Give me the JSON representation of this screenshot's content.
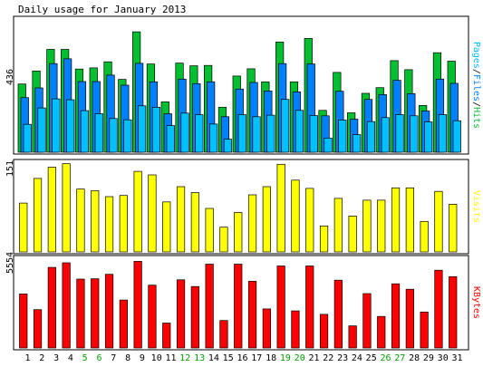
{
  "title": "Daily usage for January 2013",
  "colors": {
    "background": "#FFFFFF",
    "panel_background": "#FFFFFF",
    "border": "#000000",
    "hits": "#00C030",
    "files": "#0080FF",
    "pages": "#00C0FF",
    "visits": "#FFFF00",
    "kbytes": "#FF0000",
    "weekday_label": "#000000",
    "weekend_label": "#00A000"
  },
  "chart_data": [
    {
      "type": "bar",
      "panel": "pages-files-hits",
      "y_max_label": "436",
      "ylim": [
        0,
        436
      ],
      "legend": [
        {
          "name": "Pages",
          "color": "#00C0FF"
        },
        {
          "name": "Files",
          "color": "#0080FF"
        },
        {
          "name": "Hits",
          "color": "#00C030"
        }
      ],
      "separators": [
        "/",
        "/"
      ],
      "categories": [
        "1",
        "2",
        "3",
        "4",
        "5",
        "6",
        "7",
        "8",
        "9",
        "10",
        "11",
        "12",
        "13",
        "14",
        "15",
        "16",
        "17",
        "18",
        "19",
        "20",
        "21",
        "22",
        "23",
        "24",
        "25",
        "26",
        "27",
        "28",
        "29",
        "30",
        "31"
      ],
      "series": [
        {
          "name": "Hits",
          "values": [
            225,
            268,
            339,
            339,
            274,
            278,
            298,
            240,
            397,
            291,
            166,
            294,
            285,
            286,
            148,
            251,
            275,
            232,
            363,
            232,
            375,
            138,
            263,
            130,
            194,
            213,
            302,
            272,
            154,
            328,
            300
          ]
        },
        {
          "name": "Files",
          "values": [
            180,
            212,
            292,
            308,
            233,
            233,
            254,
            221,
            293,
            232,
            127,
            241,
            226,
            232,
            117,
            208,
            230,
            202,
            292,
            199,
            291,
            120,
            201,
            109,
            174,
            190,
            237,
            193,
            136,
            241,
            227
          ]
        },
        {
          "name": "Pages",
          "values": [
            92,
            146,
            176,
            173,
            137,
            127,
            111,
            107,
            153,
            148,
            88,
            129,
            124,
            93,
            43,
            124,
            117,
            122,
            174,
            138,
            121,
            47,
            106,
            58,
            101,
            114,
            124,
            120,
            100,
            124,
            104
          ]
        }
      ]
    },
    {
      "type": "bar",
      "panel": "visits",
      "y_max_label": "151",
      "ylim": [
        0,
        151
      ],
      "legend": [
        {
          "name": "Visits",
          "color": "#FFFF00"
        }
      ],
      "categories": [
        "1",
        "2",
        "3",
        "4",
        "5",
        "6",
        "7",
        "8",
        "9",
        "10",
        "11",
        "12",
        "13",
        "14",
        "15",
        "16",
        "17",
        "18",
        "19",
        "20",
        "21",
        "22",
        "23",
        "24",
        "25",
        "26",
        "27",
        "28",
        "29",
        "30",
        "31"
      ],
      "series": [
        {
          "name": "Visits",
          "values": [
            83,
            125,
            144,
            150,
            107,
            104,
            94,
            96,
            137,
            131,
            85,
            111,
            101,
            74,
            42,
            67,
            97,
            111,
            149,
            122,
            108,
            44,
            91,
            61,
            88,
            88,
            109,
            109,
            52,
            103,
            81
          ]
        }
      ]
    },
    {
      "type": "bar",
      "panel": "kbytes",
      "y_max_label": "5554",
      "ylim": [
        0,
        5554
      ],
      "legend": [
        {
          "name": "KBytes",
          "color": "#FF0000"
        }
      ],
      "categories": [
        "1",
        "2",
        "3",
        "4",
        "5",
        "6",
        "7",
        "8",
        "9",
        "10",
        "11",
        "12",
        "13",
        "14",
        "15",
        "16",
        "17",
        "18",
        "19",
        "20",
        "21",
        "22",
        "23",
        "24",
        "25",
        "26",
        "27",
        "28",
        "29",
        "30",
        "31"
      ],
      "series": [
        {
          "name": "KBytes",
          "values": [
            3380,
            2400,
            5040,
            5330,
            4310,
            4330,
            4610,
            3000,
            5420,
            3930,
            1560,
            4260,
            3840,
            5240,
            1720,
            5240,
            4170,
            2440,
            5130,
            2320,
            5130,
            2100,
            4240,
            1380,
            3400,
            1970,
            4010,
            3670,
            2250,
            4860,
            4460
          ]
        }
      ]
    }
  ],
  "x_axis": {
    "labels": [
      "1",
      "2",
      "3",
      "4",
      "5",
      "6",
      "7",
      "8",
      "9",
      "10",
      "11",
      "12",
      "13",
      "14",
      "15",
      "16",
      "17",
      "18",
      "19",
      "20",
      "21",
      "22",
      "23",
      "24",
      "25",
      "26",
      "27",
      "28",
      "29",
      "30",
      "31"
    ],
    "weekend": [
      false,
      false,
      false,
      false,
      true,
      true,
      false,
      false,
      false,
      false,
      false,
      true,
      true,
      false,
      false,
      false,
      false,
      false,
      true,
      true,
      false,
      false,
      false,
      false,
      false,
      true,
      true,
      false,
      false,
      false,
      false
    ]
  }
}
